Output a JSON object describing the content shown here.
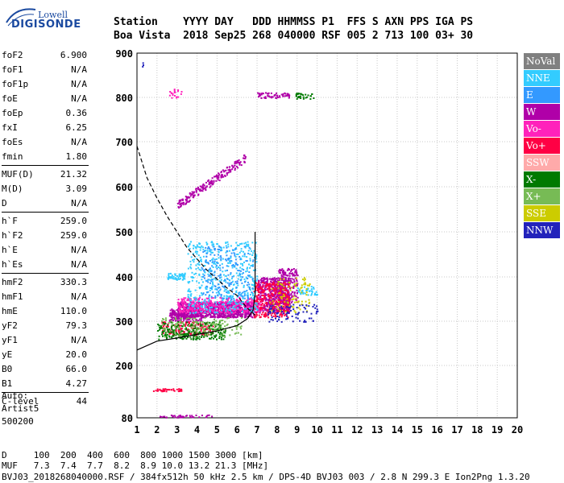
{
  "logo": {
    "top": "Lowell",
    "bottom": "DIGISONDE"
  },
  "header": {
    "row1": "Station    YYYY DAY   DDD HHMMSS P1  FFS S AXN PPS IGA PS",
    "row2": "Boa Vista  2018 Sep25 268 040000 RSF 005 2 713 100 03+ 30"
  },
  "params": [
    {
      "group": [
        {
          "label": "foF2",
          "value": "6.900"
        },
        {
          "label": "foF1",
          "value": "N/A"
        },
        {
          "label": "foF1p",
          "value": "N/A"
        },
        {
          "label": "foE",
          "value": "N/A"
        },
        {
          "label": "foEp",
          "value": "0.36"
        },
        {
          "label": "fxI",
          "value": "6.25"
        },
        {
          "label": "foEs",
          "value": "N/A"
        },
        {
          "label": "fmin",
          "value": "1.80"
        }
      ]
    },
    {
      "group": [
        {
          "label": "MUF(D)",
          "value": "21.32"
        },
        {
          "label": "M(D)",
          "value": "3.09"
        },
        {
          "label": "D",
          "value": "N/A"
        }
      ]
    },
    {
      "group": [
        {
          "label": "h`F",
          "value": "259.0"
        },
        {
          "label": "h`F2",
          "value": "259.0"
        },
        {
          "label": "h`E",
          "value": "N/A"
        },
        {
          "label": "h`Es",
          "value": "N/A"
        }
      ]
    },
    {
      "group": [
        {
          "label": "hmF2",
          "value": "330.3"
        },
        {
          "label": "hmF1",
          "value": "N/A"
        },
        {
          "label": "hmE",
          "value": "110.0"
        },
        {
          "label": "yF2",
          "value": "79.3"
        },
        {
          "label": "yF1",
          "value": "N/A"
        },
        {
          "label": "yE",
          "value": "20.0"
        },
        {
          "label": "B0",
          "value": "66.0"
        },
        {
          "label": "B1",
          "value": "4.27"
        }
      ]
    },
    {
      "group": [
        {
          "label": "C-level",
          "value": "44"
        }
      ]
    }
  ],
  "auto_note": [
    "Auto:",
    "Artist5",
    "500200"
  ],
  "legend": [
    {
      "label": "NoVal",
      "color": "#808080"
    },
    {
      "label": "NNE",
      "color": "#33ccff"
    },
    {
      "label": "E",
      "color": "#3399ff"
    },
    {
      "label": "W",
      "color": "#b000a8"
    },
    {
      "label": "Vo-",
      "color": "#ff22bb"
    },
    {
      "label": "Vo+",
      "color": "#ff0044"
    },
    {
      "label": "SSW",
      "color": "#ffaaaa"
    },
    {
      "label": "X-",
      "color": "#007a00"
    },
    {
      "label": "X+",
      "color": "#77bb55"
    },
    {
      "label": "SSE",
      "color": "#cccc00"
    },
    {
      "label": "NNW",
      "color": "#2222bb"
    }
  ],
  "footer": {
    "row1": "D     100  200  400  600  800 1000 1500 3000 [km]",
    "row2": "MUF   7.3  7.4  7.7  8.2  8.9 10.0 13.2 21.3 [MHz]",
    "row3": "BVJ03_2018268040000.RSF / 384fx512h 50 kHz 2.5 km / DPS-4D BVJ03 003 / 2.8 N 299.3 E Ion2Png 1.3.20"
  },
  "chart_data": {
    "type": "scatter",
    "title": "",
    "xlabel": "",
    "ylabel": "",
    "xlim": [
      1,
      20
    ],
    "ylim": [
      80,
      900
    ],
    "xticks": [
      1,
      2,
      3,
      4,
      5,
      6,
      7,
      8,
      9,
      10,
      11,
      12,
      13,
      14,
      15,
      16,
      17,
      18,
      19,
      20
    ],
    "yticks": [
      80,
      200,
      300,
      400,
      500,
      600,
      700,
      800,
      900
    ],
    "grid": true,
    "legend_position": "right",
    "clusters": [
      {
        "color": "#b000a8",
        "x": [
          3.0,
          6.8
        ],
        "y": [
          310,
          345
        ],
        "n": 900
      },
      {
        "color": "#b000a8",
        "x": [
          2.6,
          4.2
        ],
        "y": [
          300,
          330
        ],
        "n": 200
      },
      {
        "color": "#b000a8",
        "x": [
          7.0,
          8.6
        ],
        "y": [
          320,
          400
        ],
        "n": 450
      },
      {
        "color": "#b000a8",
        "x": [
          8.0,
          9.0
        ],
        "y": [
          340,
          420
        ],
        "n": 200
      },
      {
        "color": "#ff22bb",
        "x": [
          3.0,
          7.2
        ],
        "y": [
          320,
          355
        ],
        "n": 400
      },
      {
        "color": "#ff0044",
        "x": [
          6.8,
          8.6
        ],
        "y": [
          310,
          390
        ],
        "n": 300
      },
      {
        "color": "#ff0044",
        "x": [
          2.2,
          4.8
        ],
        "y": [
          270,
          300
        ],
        "n": 150
      },
      {
        "color": "#33ccff",
        "x": [
          3.5,
          7.0
        ],
        "y": [
          320,
          480
        ],
        "n": 500
      },
      {
        "color": "#3399ff",
        "x": [
          4.2,
          6.8
        ],
        "y": [
          350,
          470
        ],
        "n": 200
      },
      {
        "color": "#33ccff",
        "x": [
          2.5,
          3.4
        ],
        "y": [
          395,
          410
        ],
        "n": 60
      },
      {
        "color": "#33ccff",
        "x": [
          9.0,
          10.0
        ],
        "y": [
          360,
          380
        ],
        "n": 40
      },
      {
        "color": "#007a00",
        "x": [
          2.0,
          5.4
        ],
        "y": [
          260,
          300
        ],
        "n": 250
      },
      {
        "color": "#77bb55",
        "x": [
          2.2,
          6.2
        ],
        "y": [
          265,
          310
        ],
        "n": 150
      },
      {
        "color": "#cccc00",
        "x": [
          7.6,
          9.6
        ],
        "y": [
          320,
          400
        ],
        "n": 90
      },
      {
        "color": "#2222bb",
        "x": [
          7.5,
          10.0
        ],
        "y": [
          300,
          340
        ],
        "n": 80
      },
      {
        "color": "#b000a8",
        "x": [
          3.0,
          6.4
        ],
        "y": [
          560,
          665
        ],
        "n": 200,
        "band": true
      },
      {
        "color": "#b000a8",
        "x": [
          7.0,
          8.6
        ],
        "y": [
          800,
          812
        ],
        "n": 60
      },
      {
        "color": "#007a00",
        "x": [
          8.9,
          9.8
        ],
        "y": [
          798,
          812
        ],
        "n": 30
      },
      {
        "color": "#ff22bb",
        "x": [
          2.6,
          3.2
        ],
        "y": [
          800,
          820
        ],
        "n": 20
      },
      {
        "color": "#ff0044",
        "x": [
          1.8,
          3.2
        ],
        "y": [
          142,
          148
        ],
        "n": 40
      },
      {
        "color": "#b000a8",
        "x": [
          1.8,
          4.8
        ],
        "y": [
          82,
          88
        ],
        "n": 40
      },
      {
        "color": "#2222bb",
        "x": [
          1.2,
          1.3
        ],
        "y": [
          870,
          880
        ],
        "n": 3
      }
    ],
    "curves": [
      {
        "name": "",
        "style": "dashed",
        "points": [
          [
            1.0,
            690
          ],
          [
            1.5,
            620
          ],
          [
            2.0,
            575
          ],
          [
            2.5,
            535
          ],
          [
            3.0,
            500
          ],
          [
            3.5,
            465
          ],
          [
            4.0,
            440
          ],
          [
            4.5,
            415
          ],
          [
            5.0,
            395
          ],
          [
            5.5,
            375
          ],
          [
            6.0,
            358
          ],
          [
            6.5,
            330
          ],
          [
            7.0,
            310
          ]
        ]
      },
      {
        "name": "",
        "style": "solid",
        "points": [
          [
            1.0,
            235
          ],
          [
            1.5,
            245
          ],
          [
            2.0,
            255
          ],
          [
            3.0,
            262
          ],
          [
            4.0,
            270
          ],
          [
            5.0,
            278
          ],
          [
            6.0,
            290
          ],
          [
            6.5,
            305
          ],
          [
            6.8,
            325
          ],
          [
            6.9,
            360
          ],
          [
            6.9,
            430
          ],
          [
            6.9,
            500
          ]
        ]
      }
    ]
  }
}
